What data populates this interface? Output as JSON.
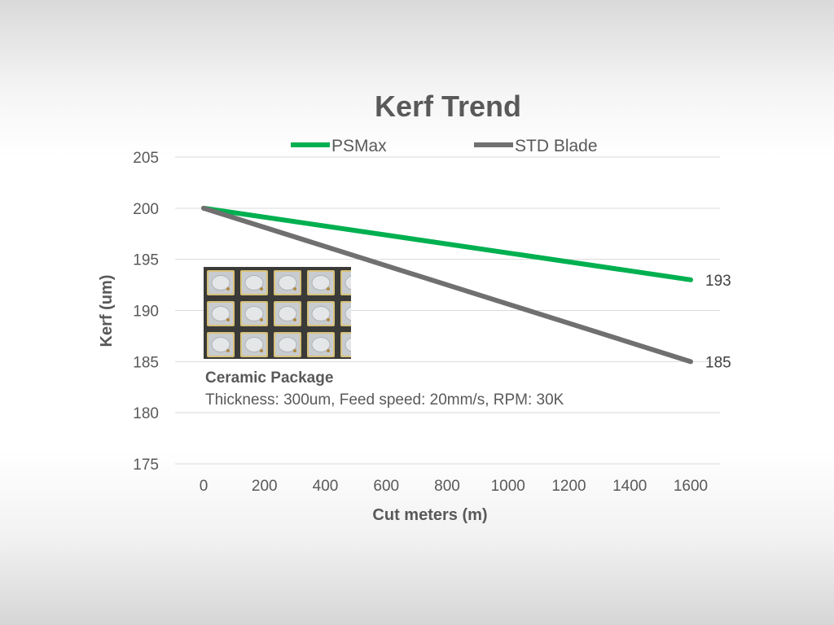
{
  "chart_data": {
    "type": "line",
    "title": "Kerf Trend",
    "xlabel": "Cut meters (m)",
    "ylabel": "Kerf (um)",
    "x": [
      0,
      1600
    ],
    "xticks": [
      "0",
      "200",
      "400",
      "600",
      "800",
      "1000",
      "1200",
      "1400",
      "1600"
    ],
    "xlim": [
      0,
      1600
    ],
    "yticks": [
      "175",
      "180",
      "185",
      "190",
      "195",
      "200",
      "205"
    ],
    "ylim": [
      175,
      205
    ],
    "grid": true,
    "legend": "top",
    "series": [
      {
        "name": "PSMax",
        "values": [
          200,
          193
        ],
        "color": "#00b050",
        "end_label": "193"
      },
      {
        "name": "STD Blade",
        "values": [
          200,
          185
        ],
        "color": "#707070",
        "end_label": "185"
      }
    ],
    "annotation": {
      "title": "Ceramic Package",
      "text": "Thickness: 300um, Feed speed: 20mm/s, RPM: 30K"
    }
  }
}
